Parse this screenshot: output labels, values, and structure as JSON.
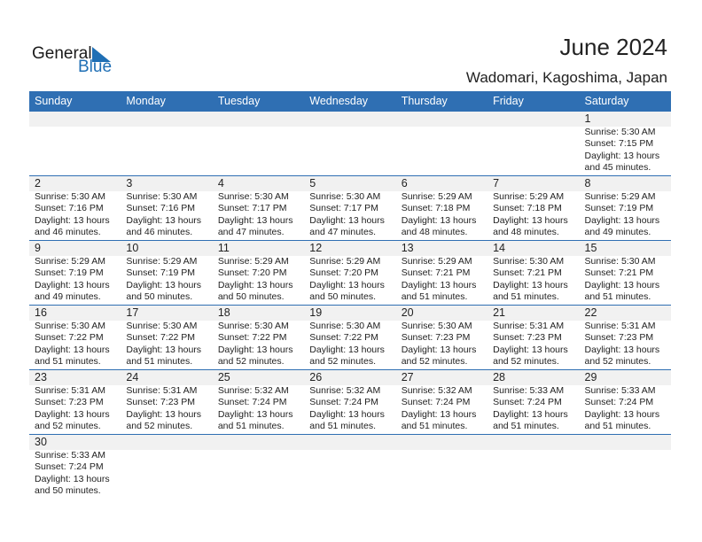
{
  "logo": {
    "general": "General",
    "blue": "Blue"
  },
  "header": {
    "title": "June 2024",
    "location": "Wadomari, Kagoshima, Japan"
  },
  "colors": {
    "accent": "#2f6fb3",
    "date_band": "#f1f1f1"
  },
  "weekdays": [
    "Sunday",
    "Monday",
    "Tuesday",
    "Wednesday",
    "Thursday",
    "Friday",
    "Saturday"
  ],
  "weeks": [
    [
      null,
      null,
      null,
      null,
      null,
      null,
      {
        "day": "1",
        "sunrise": "Sunrise: 5:30 AM",
        "sunset": "Sunset: 7:15 PM",
        "daylight": "Daylight: 13 hours",
        "minutes": "and 45 minutes."
      }
    ],
    [
      {
        "day": "2",
        "sunrise": "Sunrise: 5:30 AM",
        "sunset": "Sunset: 7:16 PM",
        "daylight": "Daylight: 13 hours",
        "minutes": "and 46 minutes."
      },
      {
        "day": "3",
        "sunrise": "Sunrise: 5:30 AM",
        "sunset": "Sunset: 7:16 PM",
        "daylight": "Daylight: 13 hours",
        "minutes": "and 46 minutes."
      },
      {
        "day": "4",
        "sunrise": "Sunrise: 5:30 AM",
        "sunset": "Sunset: 7:17 PM",
        "daylight": "Daylight: 13 hours",
        "minutes": "and 47 minutes."
      },
      {
        "day": "5",
        "sunrise": "Sunrise: 5:30 AM",
        "sunset": "Sunset: 7:17 PM",
        "daylight": "Daylight: 13 hours",
        "minutes": "and 47 minutes."
      },
      {
        "day": "6",
        "sunrise": "Sunrise: 5:29 AM",
        "sunset": "Sunset: 7:18 PM",
        "daylight": "Daylight: 13 hours",
        "minutes": "and 48 minutes."
      },
      {
        "day": "7",
        "sunrise": "Sunrise: 5:29 AM",
        "sunset": "Sunset: 7:18 PM",
        "daylight": "Daylight: 13 hours",
        "minutes": "and 48 minutes."
      },
      {
        "day": "8",
        "sunrise": "Sunrise: 5:29 AM",
        "sunset": "Sunset: 7:19 PM",
        "daylight": "Daylight: 13 hours",
        "minutes": "and 49 minutes."
      }
    ],
    [
      {
        "day": "9",
        "sunrise": "Sunrise: 5:29 AM",
        "sunset": "Sunset: 7:19 PM",
        "daylight": "Daylight: 13 hours",
        "minutes": "and 49 minutes."
      },
      {
        "day": "10",
        "sunrise": "Sunrise: 5:29 AM",
        "sunset": "Sunset: 7:19 PM",
        "daylight": "Daylight: 13 hours",
        "minutes": "and 50 minutes."
      },
      {
        "day": "11",
        "sunrise": "Sunrise: 5:29 AM",
        "sunset": "Sunset: 7:20 PM",
        "daylight": "Daylight: 13 hours",
        "minutes": "and 50 minutes."
      },
      {
        "day": "12",
        "sunrise": "Sunrise: 5:29 AM",
        "sunset": "Sunset: 7:20 PM",
        "daylight": "Daylight: 13 hours",
        "minutes": "and 50 minutes."
      },
      {
        "day": "13",
        "sunrise": "Sunrise: 5:29 AM",
        "sunset": "Sunset: 7:21 PM",
        "daylight": "Daylight: 13 hours",
        "minutes": "and 51 minutes."
      },
      {
        "day": "14",
        "sunrise": "Sunrise: 5:30 AM",
        "sunset": "Sunset: 7:21 PM",
        "daylight": "Daylight: 13 hours",
        "minutes": "and 51 minutes."
      },
      {
        "day": "15",
        "sunrise": "Sunrise: 5:30 AM",
        "sunset": "Sunset: 7:21 PM",
        "daylight": "Daylight: 13 hours",
        "minutes": "and 51 minutes."
      }
    ],
    [
      {
        "day": "16",
        "sunrise": "Sunrise: 5:30 AM",
        "sunset": "Sunset: 7:22 PM",
        "daylight": "Daylight: 13 hours",
        "minutes": "and 51 minutes."
      },
      {
        "day": "17",
        "sunrise": "Sunrise: 5:30 AM",
        "sunset": "Sunset: 7:22 PM",
        "daylight": "Daylight: 13 hours",
        "minutes": "and 51 minutes."
      },
      {
        "day": "18",
        "sunrise": "Sunrise: 5:30 AM",
        "sunset": "Sunset: 7:22 PM",
        "daylight": "Daylight: 13 hours",
        "minutes": "and 52 minutes."
      },
      {
        "day": "19",
        "sunrise": "Sunrise: 5:30 AM",
        "sunset": "Sunset: 7:22 PM",
        "daylight": "Daylight: 13 hours",
        "minutes": "and 52 minutes."
      },
      {
        "day": "20",
        "sunrise": "Sunrise: 5:30 AM",
        "sunset": "Sunset: 7:23 PM",
        "daylight": "Daylight: 13 hours",
        "minutes": "and 52 minutes."
      },
      {
        "day": "21",
        "sunrise": "Sunrise: 5:31 AM",
        "sunset": "Sunset: 7:23 PM",
        "daylight": "Daylight: 13 hours",
        "minutes": "and 52 minutes."
      },
      {
        "day": "22",
        "sunrise": "Sunrise: 5:31 AM",
        "sunset": "Sunset: 7:23 PM",
        "daylight": "Daylight: 13 hours",
        "minutes": "and 52 minutes."
      }
    ],
    [
      {
        "day": "23",
        "sunrise": "Sunrise: 5:31 AM",
        "sunset": "Sunset: 7:23 PM",
        "daylight": "Daylight: 13 hours",
        "minutes": "and 52 minutes."
      },
      {
        "day": "24",
        "sunrise": "Sunrise: 5:31 AM",
        "sunset": "Sunset: 7:23 PM",
        "daylight": "Daylight: 13 hours",
        "minutes": "and 52 minutes."
      },
      {
        "day": "25",
        "sunrise": "Sunrise: 5:32 AM",
        "sunset": "Sunset: 7:24 PM",
        "daylight": "Daylight: 13 hours",
        "minutes": "and 51 minutes."
      },
      {
        "day": "26",
        "sunrise": "Sunrise: 5:32 AM",
        "sunset": "Sunset: 7:24 PM",
        "daylight": "Daylight: 13 hours",
        "minutes": "and 51 minutes."
      },
      {
        "day": "27",
        "sunrise": "Sunrise: 5:32 AM",
        "sunset": "Sunset: 7:24 PM",
        "daylight": "Daylight: 13 hours",
        "minutes": "and 51 minutes."
      },
      {
        "day": "28",
        "sunrise": "Sunrise: 5:33 AM",
        "sunset": "Sunset: 7:24 PM",
        "daylight": "Daylight: 13 hours",
        "minutes": "and 51 minutes."
      },
      {
        "day": "29",
        "sunrise": "Sunrise: 5:33 AM",
        "sunset": "Sunset: 7:24 PM",
        "daylight": "Daylight: 13 hours",
        "minutes": "and 51 minutes."
      }
    ],
    [
      {
        "day": "30",
        "sunrise": "Sunrise: 5:33 AM",
        "sunset": "Sunset: 7:24 PM",
        "daylight": "Daylight: 13 hours",
        "minutes": "and 50 minutes."
      },
      null,
      null,
      null,
      null,
      null,
      null
    ]
  ]
}
